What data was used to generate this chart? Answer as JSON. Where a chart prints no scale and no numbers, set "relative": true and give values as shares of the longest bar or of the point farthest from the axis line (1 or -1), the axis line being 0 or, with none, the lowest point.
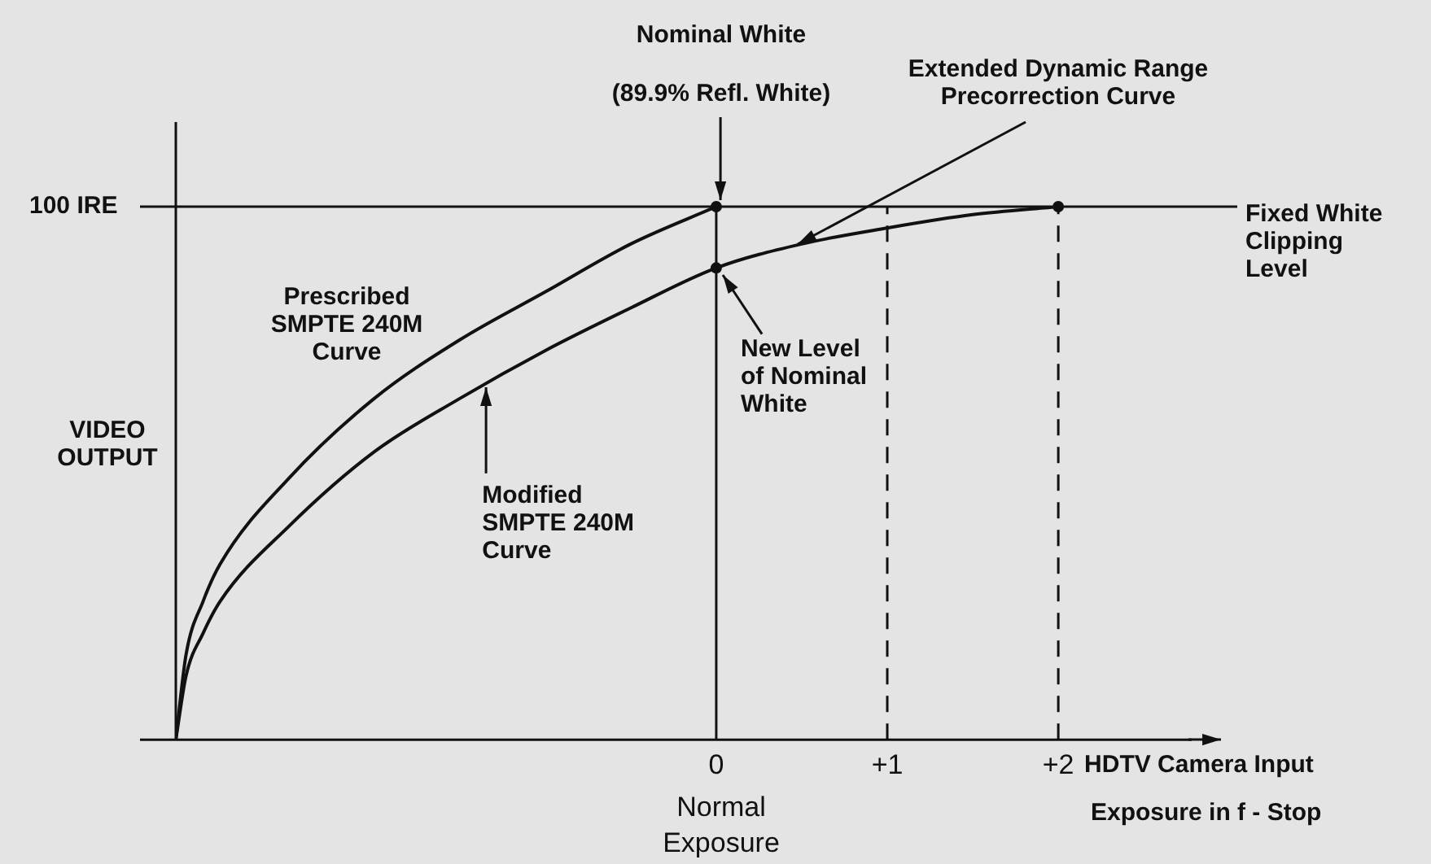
{
  "chart_data": {
    "type": "line",
    "relative": true,
    "xlabel": "HDTV Camera Input",
    "ylabel": "VIDEO OUTPUT",
    "xlim": [
      -3.16,
      2.78
    ],
    "xticks": [
      {
        "value": 0,
        "label": "0"
      },
      {
        "value": 1,
        "label": "+1"
      },
      {
        "value": 2,
        "label": "+2"
      }
    ],
    "series": [
      {
        "name": "Prescribed SMPTE 240M Curve",
        "color": "#111111",
        "x": [
          -3.16,
          -3.1,
          -3.0,
          -2.9,
          -2.5,
          -2.0,
          -1.5,
          -1.0,
          -0.5,
          0
        ],
        "values": [
          0,
          0.16,
          0.26,
          0.33,
          0.49,
          0.64,
          0.75,
          0.84,
          0.93,
          1.0
        ]
      },
      {
        "color": "#111111",
        "x": [
          -3.16,
          -3.1,
          -3.0,
          -2.9,
          -2.5,
          -2.0,
          -1.5,
          -1.0,
          -0.5,
          0,
          0.5,
          1.0,
          1.5,
          2.0
        ],
        "values": [
          0,
          0.12,
          0.2,
          0.26,
          0.4,
          0.54,
          0.64,
          0.73,
          0.81,
          0.885,
          0.93,
          0.96,
          0.985,
          1.0
        ]
      }
    ],
    "ref_lines": [
      {
        "axis": "y",
        "value": 1,
        "label": "100 IRE"
      },
      {
        "axis": "x",
        "value": 0
      },
      {
        "axis": "x",
        "value": 1,
        "line_style": "dashed"
      },
      {
        "axis": "x",
        "value": 2,
        "line_style": "dashed"
      }
    ],
    "annotations": [
      "Nominal White",
      "(89.9% Refl. White)",
      "Extended Dynamic Range Precorrection Curve",
      {
        "text": "New Level of Nominal White",
        "x": 0,
        "y": 0.885
      },
      "Fixed White Clipping Level",
      "Normal Exposure",
      "Exposure in f - Stop",
      {
        "text": "Modified SMPTE 240M Curve",
        "x": -1.35,
        "y": 0.667
      }
    ],
    "grid": false,
    "legend": false
  }
}
